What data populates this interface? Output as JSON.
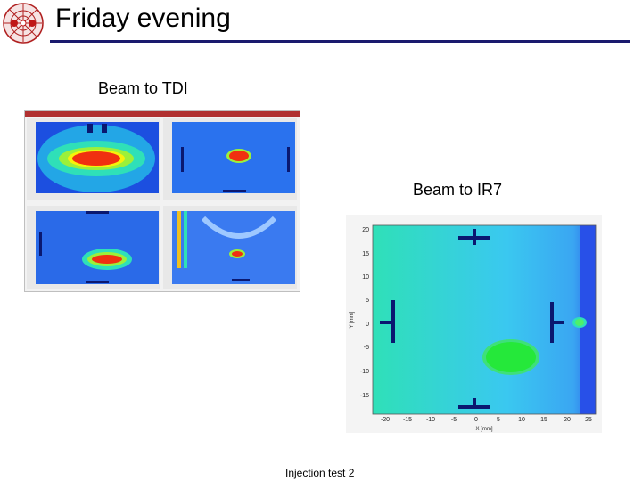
{
  "header": {
    "title": "Friday evening",
    "rule_color": "#1a1a6e",
    "logo_icon": "cern-collision-logo"
  },
  "labels": {
    "tdi": "Beam to TDI",
    "ir7": "Beam to IR7"
  },
  "ir7_plot": {
    "xlabel": "X [mm]",
    "ylabel": "Y [mm]",
    "x_ticks": [
      "-20",
      "-15",
      "-10",
      "-5",
      "0",
      "5",
      "10",
      "15",
      "20",
      "25"
    ],
    "y_ticks": [
      "20",
      "15",
      "10",
      "5",
      "0",
      "-5",
      "-10",
      "-15"
    ]
  },
  "footer": {
    "caption": "Injection test 2"
  }
}
